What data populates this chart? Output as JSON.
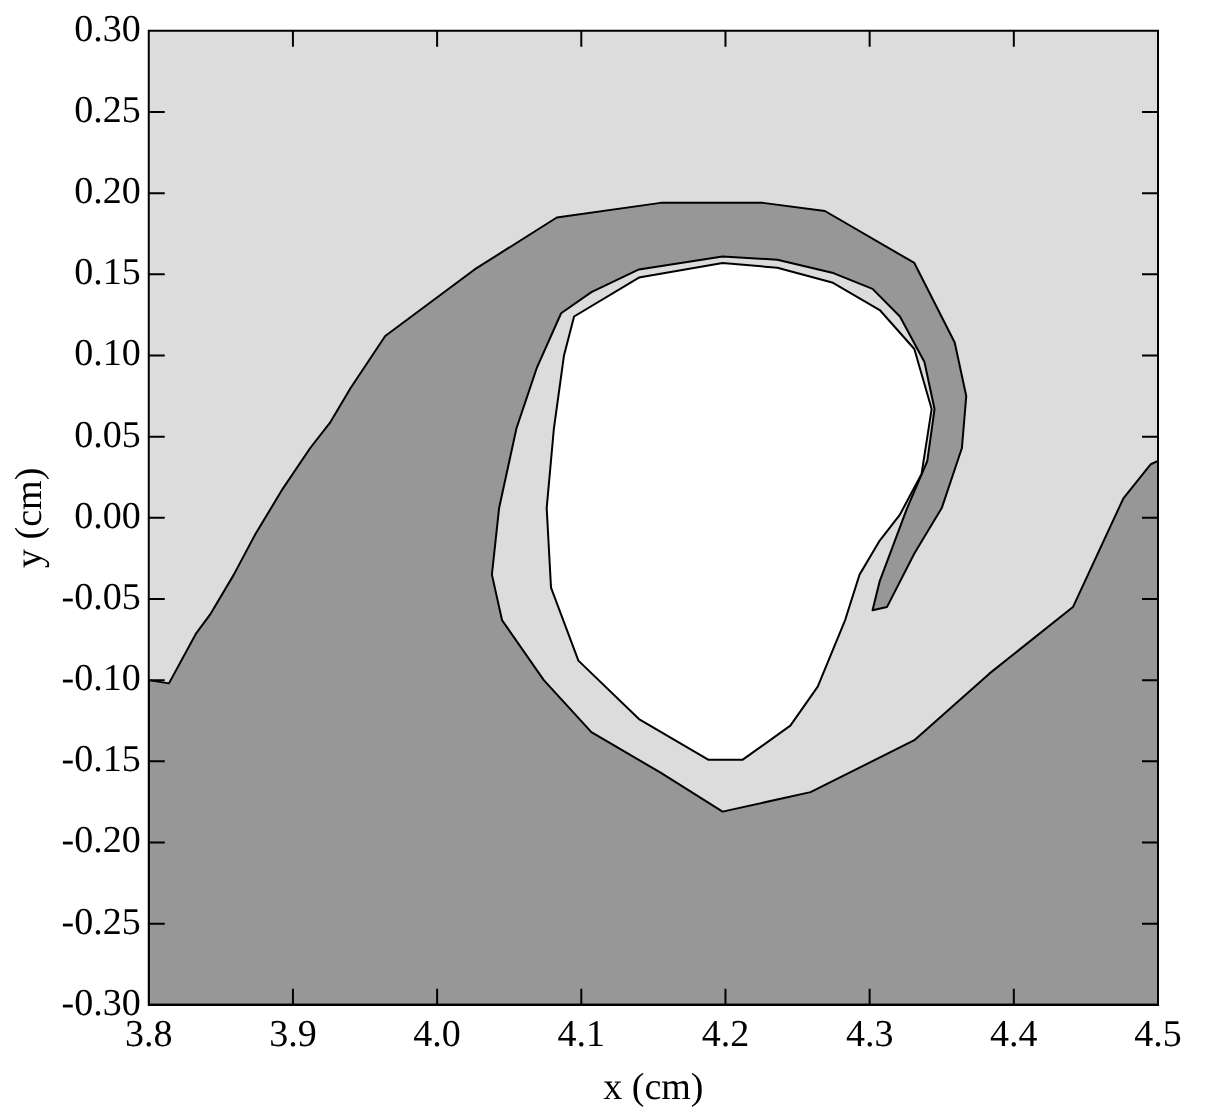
{
  "chart_data": {
    "type": "area",
    "xlabel": "x (cm)",
    "ylabel": "y (cm)",
    "xlim": [
      3.8,
      4.5
    ],
    "ylim": [
      -0.3,
      0.3
    ],
    "xticks": [
      {
        "value": 3.8,
        "label": "3.8"
      },
      {
        "value": 3.9,
        "label": "3.9"
      },
      {
        "value": 4.0,
        "label": "4.0"
      },
      {
        "value": 4.1,
        "label": "4.1"
      },
      {
        "value": 4.2,
        "label": "4.2"
      },
      {
        "value": 4.3,
        "label": "4.3"
      },
      {
        "value": 4.4,
        "label": "4.4"
      },
      {
        "value": 4.5,
        "label": "4.5"
      }
    ],
    "yticks": [
      {
        "value": -0.3,
        "label": "-0.30"
      },
      {
        "value": -0.25,
        "label": "-0.25"
      },
      {
        "value": -0.2,
        "label": "-0.20"
      },
      {
        "value": -0.15,
        "label": "-0.15"
      },
      {
        "value": -0.1,
        "label": "-0.10"
      },
      {
        "value": -0.05,
        "label": "-0.05"
      },
      {
        "value": 0,
        "label": "0.00"
      },
      {
        "value": 0.05,
        "label": "0.05"
      },
      {
        "value": 0.1,
        "label": "0.10"
      },
      {
        "value": 0.15,
        "label": "0.15"
      },
      {
        "value": 0.2,
        "label": "0.20"
      },
      {
        "value": 0.25,
        "label": "0.25"
      },
      {
        "value": 0.3,
        "label": "0.30"
      }
    ],
    "legend": false,
    "bands": [
      {
        "axis": "y",
        "from": -0.3,
        "to": 0.3,
        "color": "#dcdcdc"
      }
    ],
    "series": [
      {
        "color": "#979797",
        "x": [
          3.8,
          3.814,
          3.833,
          3.843,
          3.859,
          3.874,
          3.893,
          3.912,
          3.926,
          3.94,
          3.964,
          4.026,
          4.083,
          4.155,
          4.226,
          4.269,
          4.331,
          4.359,
          4.367,
          4.364,
          4.35,
          4.331,
          4.312,
          4.302,
          4.307,
          4.326,
          4.34,
          4.345,
          4.338,
          4.321,
          4.302,
          4.274,
          4.236,
          4.198,
          4.14,
          4.107,
          4.086,
          4.069,
          4.055,
          4.043,
          4.038,
          4.045,
          4.074,
          4.107,
          4.155,
          4.198,
          4.259,
          4.331,
          4.383,
          4.441,
          4.476,
          4.495,
          4.5,
          4.5,
          3.8
        ],
        "values": [
          -0.1,
          -0.102,
          -0.071,
          -0.059,
          -0.035,
          -0.01,
          0.018,
          0.043,
          0.059,
          0.08,
          0.112,
          0.153,
          0.185,
          0.194,
          0.194,
          0.189,
          0.157,
          0.108,
          0.075,
          0.043,
          0.006,
          -0.022,
          -0.055,
          -0.057,
          -0.039,
          0.006,
          0.035,
          0.067,
          0.096,
          0.124,
          0.141,
          0.151,
          0.159,
          0.161,
          0.153,
          0.139,
          0.126,
          0.092,
          0.055,
          0.006,
          -0.035,
          -0.063,
          -0.1,
          -0.132,
          -0.157,
          -0.181,
          -0.169,
          -0.137,
          -0.096,
          -0.055,
          0.012,
          0.033,
          0.035,
          -0.3,
          -0.3
        ]
      },
      {
        "color": "#ffffff",
        "x": [
          4.095,
          4.14,
          4.198,
          4.236,
          4.274,
          4.307,
          4.331,
          4.343,
          4.336,
          4.321,
          4.307,
          4.293,
          4.283,
          4.264,
          4.245,
          4.212,
          4.188,
          4.14,
          4.098,
          4.079,
          4.076,
          4.081,
          4.088
        ],
        "values": [
          0.124,
          0.148,
          0.157,
          0.154,
          0.145,
          0.128,
          0.104,
          0.067,
          0.027,
          0.002,
          -0.014,
          -0.035,
          -0.063,
          -0.104,
          -0.128,
          -0.149,
          -0.149,
          -0.124,
          -0.088,
          -0.043,
          0.006,
          0.055,
          0.1
        ]
      }
    ]
  }
}
